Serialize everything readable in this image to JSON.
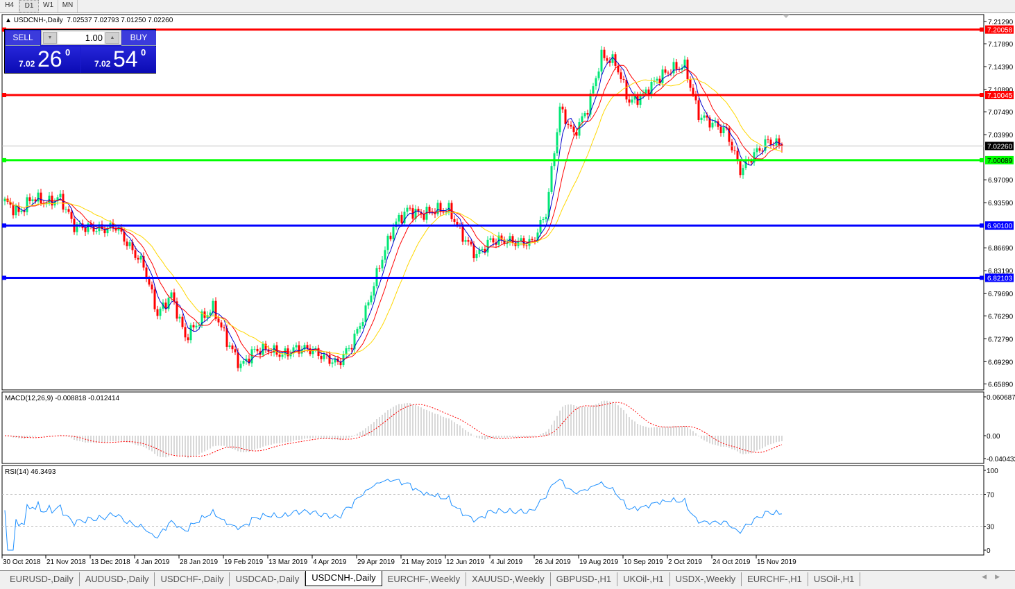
{
  "timeframes": [
    "H4",
    "D1",
    "W1",
    "MN"
  ],
  "active_timeframe": "D1",
  "chart": {
    "symbol_line": "USDCNH-,Daily  7.02537 7.02793 7.01250 7.02260"
  },
  "trade_panel": {
    "sell_label": "SELL",
    "buy_label": "BUY",
    "lot": "1.00",
    "sell_small": "7.02",
    "sell_big": "26",
    "sell_sup": "0",
    "buy_small": "7.02",
    "buy_big": "54",
    "buy_sup": "0"
  },
  "indicators": {
    "macd_label": "MACD(12,26,9) -0.008818 -0.012414",
    "rsi_label": "RSI(14) 46.3493"
  },
  "tabs": [
    "EURUSD-,Daily",
    "AUDUSD-,Daily",
    "USDCHF-,Daily",
    "USDCAD-,Daily",
    "USDCNH-,Daily",
    "EURCHF-,Weekly",
    "XAUUSD-,Weekly",
    "GBPUSD-,H1",
    "UKOil-,H1",
    "USDX-,Weekly",
    "EURCHF-,H1",
    "USOil-,H1"
  ],
  "active_tab": "USDCNH-,Daily",
  "colors": {
    "bull": "#00e676",
    "bear": "#ff0000",
    "ma_fast": "#0000cc",
    "ma_mid": "#ff0000",
    "ma_slow": "#ffd700",
    "macd_hist": "#b0b0b0",
    "macd_signal": "#ff0000",
    "rsi": "#1e90ff"
  },
  "chart_data": {
    "type": "candlestick",
    "price_ticks": [
      "7.21290",
      "7.17890",
      "7.14390",
      "7.10890",
      "7.07490",
      "7.03990",
      "6.97090",
      "6.93590",
      "6.86690",
      "6.83190",
      "6.79690",
      "6.76290",
      "6.72790",
      "6.69290",
      "6.65890"
    ],
    "ylim": [
      6.6589,
      7.2129
    ],
    "current_price": "7.02260",
    "levels": [
      {
        "value": "7.20058",
        "color": "#ff0000"
      },
      {
        "value": "7.10045",
        "color": "#ff0000"
      },
      {
        "value": "7.00089",
        "color": "#00ff00"
      },
      {
        "value": "6.90100",
        "color": "#0000ff"
      },
      {
        "value": "6.82103",
        "color": "#0000ff"
      }
    ],
    "x_ticks": [
      "30 Oct 2018",
      "21 Nov 2018",
      "13 Dec 2018",
      "4 Jan 2019",
      "28 Jan 2019",
      "19 Feb 2019",
      "13 Mar 2019",
      "4 Apr 2019",
      "29 Apr 2019",
      "21 May 2019",
      "12 Jun 2019",
      "4 Jul 2019",
      "26 Jul 2019",
      "19 Aug 2019",
      "10 Sep 2019",
      "2 Oct 2019",
      "24 Oct 2019",
      "15 Nov 2019"
    ],
    "weekly_closes_approx": [
      6.938,
      6.92,
      6.944,
      6.936,
      6.943,
      6.9,
      6.898,
      6.895,
      6.9,
      6.868,
      6.84,
      6.765,
      6.795,
      6.73,
      6.755,
      6.775,
      6.725,
      6.686,
      6.71,
      6.712,
      6.703,
      6.713,
      6.712,
      6.7,
      6.69,
      6.72,
      6.77,
      6.84,
      6.9,
      6.925,
      6.918,
      6.925,
      6.925,
      6.885,
      6.855,
      6.878,
      6.878,
      6.875,
      6.875,
      6.92,
      7.08,
      7.04,
      7.08,
      7.16,
      7.15,
      7.09,
      7.1,
      7.125,
      7.14,
      7.145,
      7.07,
      7.057,
      7.045,
      6.985,
      7.01,
      7.03,
      7.022
    ],
    "macd_axis": [
      "0.060687",
      "0.00",
      "-0.040432"
    ],
    "rsi_axis": [
      "100",
      "70",
      "30",
      "0"
    ]
  }
}
